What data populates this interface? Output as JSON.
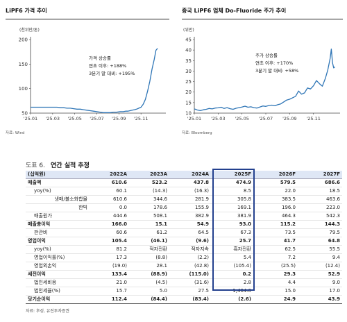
{
  "charts": [
    {
      "title": "LiPF6 가격 추이",
      "unit": "(천위안/톤)",
      "source": "자료: Wind",
      "annotation": [
        "가격 상승률",
        "연초 이후: +188%",
        "3분기 말 대비: +195%"
      ],
      "line_color": "#2e75b6"
    },
    {
      "title": "중국 LiPF6 업체 Do-Fluoride 주가 추이",
      "unit": "(위안)",
      "source": "자료: Bloomberg",
      "annotation": [
        "주가 상승률",
        "연초 이후: +170%",
        "3분기 말 대비: +58%"
      ],
      "line_color": "#2e75b6"
    }
  ],
  "chart_data": [
    {
      "type": "line",
      "title": "LiPF6 가격 추이",
      "ylabel": "(천위안/톤)",
      "ylim": [
        50,
        200
      ],
      "yticks": [
        "50",
        "100",
        "150",
        "200"
      ],
      "xticks": [
        "'25.01",
        "'25.03",
        "'25.05",
        "'25.07",
        "'25.09",
        "'25.11"
      ],
      "grid": false,
      "x": [
        0,
        0.3,
        0.6,
        0.9,
        1.2,
        1.5,
        1.8,
        2.1,
        2.4,
        2.7,
        3.0,
        3.3,
        3.6,
        3.9,
        4.2,
        4.5,
        4.8,
        5.1,
        5.4,
        5.7,
        6.0,
        6.3,
        6.6,
        6.9,
        7.2,
        7.5,
        7.8,
        8.1,
        8.4,
        8.6,
        8.8,
        9.0,
        9.2,
        9.4,
        9.6,
        9.8,
        10.0,
        10.2,
        10.4,
        10.6,
        10.8,
        11.0,
        11.2,
        11.35,
        11.5
      ],
      "values": [
        62,
        62,
        62,
        62,
        62,
        62,
        62,
        62,
        62,
        61,
        61,
        60,
        60,
        59,
        58,
        58,
        57,
        56,
        55,
        54,
        53,
        52,
        51,
        51,
        51,
        52,
        52,
        53,
        53,
        54,
        54,
        55,
        56,
        57,
        58,
        60,
        62,
        68,
        78,
        95,
        115,
        140,
        160,
        178,
        182
      ]
    },
    {
      "type": "line",
      "title": "중국 LiPF6 업체 Do-Fluoride 주가 추이",
      "ylabel": "(위안)",
      "ylim": [
        10,
        45
      ],
      "yticks": [
        "10",
        "15",
        "20",
        "25",
        "30",
        "35",
        "40",
        "45"
      ],
      "xticks": [
        "'25.01",
        "'25.03",
        "'25.05",
        "'25.07",
        "'25.09",
        "'25.11"
      ],
      "grid": false,
      "x": [
        0,
        0.25,
        0.5,
        0.75,
        1.0,
        1.25,
        1.5,
        1.75,
        2.0,
        2.25,
        2.5,
        2.75,
        3.0,
        3.25,
        3.5,
        3.75,
        4.0,
        4.25,
        4.5,
        4.75,
        5.0,
        5.25,
        5.5,
        5.75,
        6.0,
        6.25,
        6.5,
        6.75,
        7.0,
        7.25,
        7.5,
        7.75,
        8.0,
        8.25,
        8.5,
        8.75,
        9.0,
        9.25,
        9.5,
        9.75,
        10.0,
        10.25,
        10.5,
        10.75,
        11.0,
        11.2,
        11.4,
        11.5,
        11.6,
        11.7,
        11.8
      ],
      "values": [
        12,
        11.5,
        11.2,
        11.6,
        11.8,
        12.2,
        12.0,
        12.4,
        12.5,
        12.8,
        12.2,
        12.6,
        12.1,
        11.8,
        12.3,
        12.6,
        12.9,
        13.3,
        12.8,
        13.0,
        12.6,
        12.4,
        12.9,
        13.4,
        13.2,
        13.6,
        13.8,
        13.5,
        14.0,
        14.4,
        15.3,
        16.2,
        16.6,
        17.3,
        18.0,
        20.5,
        19.0,
        19.6,
        22.0,
        21.5,
        23.0,
        25.5,
        24.0,
        22.8,
        26.5,
        30.5,
        36.0,
        40.5,
        34.0,
        31.5,
        32.0
      ]
    }
  ],
  "table": {
    "number": "도표 6.",
    "title": "연간 실적 추정",
    "header": [
      "(십억원)",
      "2022A",
      "2023A",
      "2024A",
      "2025F",
      "2026F",
      "2027F"
    ],
    "rows": [
      {
        "style": "bold",
        "label": "매출액",
        "cells": [
          "610.6",
          "523.2",
          "437.8",
          "474.9",
          "579.5",
          "686.6"
        ]
      },
      {
        "style": "ind1",
        "label": "yoy(%)",
        "cells": [
          "60.1",
          "(14.3)",
          "(16.3)",
          "8.5",
          "22.0",
          "18.5"
        ]
      },
      {
        "style": "ind2",
        "label": "냉매/불소화합물",
        "cells": [
          "610.6",
          "344.6",
          "281.9",
          "305.8",
          "383.5",
          "463.6"
        ]
      },
      {
        "style": "ind3",
        "label": "한빅",
        "cells": [
          "0.0",
          "178.6",
          "155.9",
          "169.1",
          "196.0",
          "223.0"
        ]
      },
      {
        "style": "ind1",
        "label": "매출원가",
        "cells": [
          "444.6",
          "508.1",
          "382.9",
          "381.9",
          "464.3",
          "542.3"
        ]
      },
      {
        "style": "bold",
        "label": "매출총이익",
        "cells": [
          "166.0",
          "15.1",
          "54.9",
          "93.0",
          "115.2",
          "144.3"
        ]
      },
      {
        "style": "ind1",
        "label": "판관비",
        "cells": [
          "60.6",
          "61.2",
          "64.5",
          "67.3",
          "73.5",
          "79.5"
        ]
      },
      {
        "style": "bold",
        "label": "영업이익",
        "cells": [
          "105.4",
          "(46.1)",
          "(9.6)",
          "25.7",
          "41.7",
          "64.8"
        ]
      },
      {
        "style": "ind1",
        "label": "yoy(%)",
        "cells": [
          "81.2",
          "적자전환",
          "적자지속",
          "흑자전환",
          "62.5",
          "55.5"
        ]
      },
      {
        "style": "ind1",
        "label": "영업이익률(%)",
        "cells": [
          "17.3",
          "(8.8)",
          "(2.2)",
          "5.4",
          "7.2",
          "9.4"
        ]
      },
      {
        "style": "ind1",
        "label": "영업외손익",
        "cells": [
          "(19.0)",
          "28.1",
          "(42.8)",
          "(105.4)",
          "(25.5)",
          "(12.4)"
        ]
      },
      {
        "style": "bold",
        "label": "세전이익",
        "cells": [
          "133.4",
          "(88.9)",
          "(115.0)",
          "0.2",
          "29.3",
          "52.9"
        ]
      },
      {
        "style": "ind1",
        "label": "법인세비용",
        "cells": [
          "21.0",
          "(4.5)",
          "(31.6)",
          "2.8",
          "4.4",
          "9.0"
        ]
      },
      {
        "style": "ind1",
        "label": "법인세율(%)",
        "cells": [
          "15.7",
          "5.0",
          "27.5",
          "1,464.0",
          "15.0",
          "17.0"
        ]
      },
      {
        "style": "bold",
        "label": "당기순이익",
        "cells": [
          "112.4",
          "(84.4)",
          "(83.4)",
          "(2.6)",
          "24.9",
          "43.9"
        ]
      }
    ],
    "source": "자료: 후성, 유진투자증권",
    "highlight_color": "#23408e"
  }
}
